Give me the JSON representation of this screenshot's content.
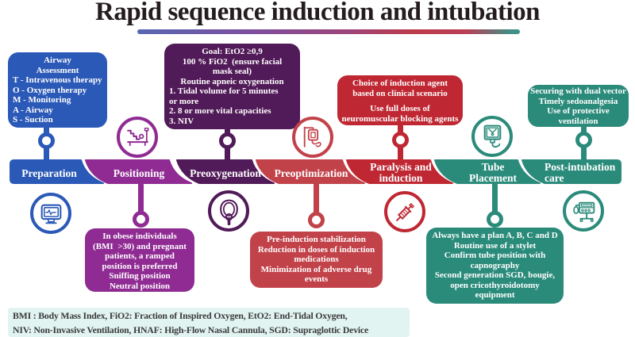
{
  "title": "Rapid sequence induction and intubation",
  "theme": {
    "blue": "#2b59b7",
    "purple": "#8f2b93",
    "darkpurple": "#511a58",
    "red": "#bf2833",
    "red_light": "#c2424a",
    "teal": "#2b8b7b",
    "footer_bg": "#e2f4f1",
    "footer_text": "#3a3a3a",
    "title_color": "#241c1e"
  },
  "stages": [
    {
      "label_lines": [
        "Preparation"
      ]
    },
    {
      "label_lines": [
        "Positioning"
      ]
    },
    {
      "label_lines": [
        "Preoxygenation"
      ]
    },
    {
      "label_lines": [
        "Preoptimization"
      ]
    },
    {
      "label_lines": [
        "Paralysis and",
        "induction"
      ]
    },
    {
      "label_lines": [
        "Tube",
        "Placement"
      ]
    },
    {
      "label_lines": [
        "Post-intubation",
        "care"
      ]
    }
  ],
  "notes": {
    "preparation": {
      "centered": [
        "Airway",
        "Assessment"
      ],
      "left": [
        "T - Intravenous therapy",
        "O - Oxygen therapy",
        "M - Monitoring",
        "A - Airway",
        "S - Suction"
      ]
    },
    "preoxygenation": {
      "centered": [
        "Goal: EtO2 ≥0,9",
        "100 % FiO2  (ensure facial",
        "mask seal)",
        "Routine apneic oxygenation"
      ],
      "left": [
        "1. Tidal volume for 5 minutes",
        "or more",
        "2. 8 or more vital capacities",
        "3. NIV"
      ]
    },
    "paralysis": {
      "lines": [
        "Choice of induction agent",
        "based on clinical scenario",
        "",
        "Use full doses of",
        "neuromuscular blocking agents"
      ]
    },
    "post_intubation": {
      "lines": [
        "Securing with dual vector",
        "Timely sedoanalgesia",
        "Use of protective",
        "ventilation"
      ]
    },
    "positioning": {
      "lines": [
        "In obese individuals",
        "(BMI  >30) and pregnant",
        "patients, a ramped",
        "position is preferred",
        "Sniffing position",
        "Neutral position"
      ]
    },
    "preoptimization": {
      "lines": [
        "Pre-induction stabilization",
        "Reduction in doses of induction",
        "medications",
        "Minimization of adverse drug",
        "events"
      ]
    },
    "tube_placement": {
      "lines": [
        "Always have a plan A, B, C and D",
        "Routine use of a stylet",
        "Confirm tube position with",
        "capnography",
        "Second generation SGD, bougie,",
        "open cricothyroidotomy",
        "equipment"
      ]
    }
  },
  "icons": {
    "preparation": "monitor-icon",
    "positioning": "ramped-bed-icon",
    "preoxygenation": "oxygen-mask-icon",
    "preoptimization": "iv-bag-icon",
    "paralysis": "syringe-icon",
    "tube_placement": "video-laryngoscope-icon",
    "post_intubation": "ventilator-icon"
  },
  "footer": {
    "line1": "BMI : Body Mass Index, FiO2: Fraction of Inspired Oxygen, EtO2: End-Tidal Oxygen,",
    "line2": "NIV: Non-Invasive Ventilation, HNAF: High-Flow Nasal Cannula, SGD: Supraglottic Device"
  }
}
